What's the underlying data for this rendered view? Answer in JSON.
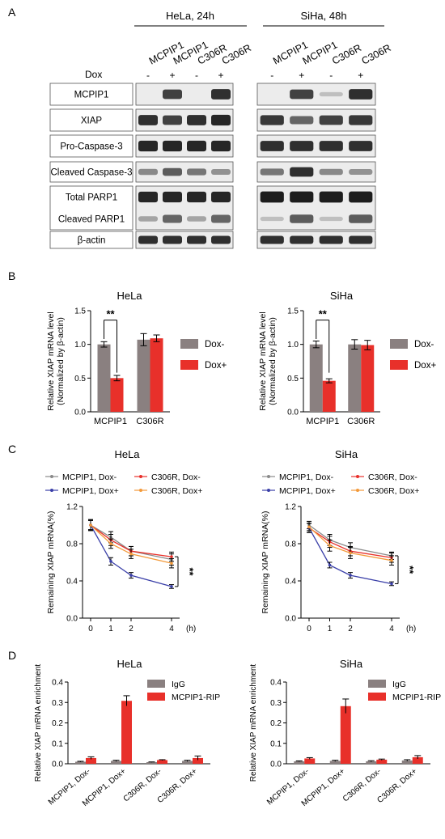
{
  "panel_letters": [
    "A",
    "B",
    "C",
    "D"
  ],
  "panel_a": {
    "groups": [
      {
        "label": "HeLa, 24h",
        "lanes": [
          "MCPIP1",
          "MCPIP1",
          "C306R",
          "C306R"
        ]
      },
      {
        "label": "SiHa, 48h",
        "lanes": [
          "MCPIP1",
          "MCPIP1",
          "C306R",
          "C306R"
        ]
      }
    ],
    "dox_label": "Dox",
    "dox_signs": [
      "-",
      "+",
      "-",
      "+"
    ],
    "rows": [
      {
        "label": "MCPIP1",
        "hela": [
          0.0,
          0.75,
          0.0,
          0.85
        ],
        "siha": [
          0.0,
          0.75,
          0.05,
          0.85
        ]
      },
      {
        "label": "XIAP",
        "hela": [
          0.85,
          0.75,
          0.85,
          0.9
        ],
        "siha": [
          0.8,
          0.55,
          0.75,
          0.8
        ]
      },
      {
        "label": "Pro-Caspase-3",
        "hela": [
          0.9,
          0.9,
          0.9,
          0.9
        ],
        "siha": [
          0.85,
          0.85,
          0.85,
          0.85
        ]
      },
      {
        "label": "Cleaved Caspase-3",
        "hela": [
          0.35,
          0.6,
          0.45,
          0.3
        ],
        "siha": [
          0.45,
          0.85,
          0.35,
          0.3
        ]
      },
      {
        "label": "Total PARP1",
        "hela": [
          0.9,
          0.9,
          0.9,
          0.9
        ],
        "siha": [
          0.95,
          0.95,
          0.95,
          0.95
        ]
      },
      {
        "label": "Cleaved PARP1",
        "hela": [
          0.2,
          0.55,
          0.2,
          0.55
        ],
        "siha": [
          0.05,
          0.6,
          0.05,
          0.6
        ]
      },
      {
        "label": "β-actin",
        "hela": [
          0.85,
          0.85,
          0.85,
          0.85
        ],
        "siha": [
          0.85,
          0.85,
          0.85,
          0.85
        ]
      }
    ]
  },
  "chart_data": [
    {
      "id": "B-HeLa",
      "type": "bar",
      "title": "HeLa",
      "ylabel": [
        "Relative XIAP mRNA level",
        "(Normalized by β-actin)"
      ],
      "categories": [
        "MCPIP1",
        "C306R"
      ],
      "ylim": [
        0,
        1.5
      ],
      "yticks": [
        "0.0",
        "0.5",
        "1.0",
        "1.5"
      ],
      "ytick_values": [
        0,
        0.5,
        1.0,
        1.5
      ],
      "series": [
        {
          "name": "Dox-",
          "color": "#8a8080",
          "values": [
            1.0,
            1.07
          ],
          "errors": [
            0.04,
            0.09
          ]
        },
        {
          "name": "Dox+",
          "color": "#e8302a",
          "values": [
            0.5,
            1.09
          ],
          "errors": [
            0.04,
            0.05
          ]
        }
      ],
      "significance": "**"
    },
    {
      "id": "B-SiHa",
      "type": "bar",
      "title": "SiHa",
      "ylabel": [
        "Relative XIAP mRNA level",
        "(Normalized by β-actin)"
      ],
      "categories": [
        "MCPIP1",
        "C306R"
      ],
      "ylim": [
        0,
        1.5
      ],
      "yticks": [
        "0.0",
        "0.5",
        "1.0",
        "1.5"
      ],
      "ytick_values": [
        0,
        0.5,
        1.0,
        1.5
      ],
      "series": [
        {
          "name": "Dox-",
          "color": "#8a8080",
          "values": [
            1.0,
            1.0
          ],
          "errors": [
            0.05,
            0.07
          ]
        },
        {
          "name": "Dox+",
          "color": "#e8302a",
          "values": [
            0.46,
            0.99
          ],
          "errors": [
            0.03,
            0.07
          ]
        }
      ],
      "significance": "**"
    },
    {
      "id": "C-HeLa",
      "type": "line",
      "title": "HeLa",
      "ylabel": "Remaining XIAP mRNA(%)",
      "x": [
        0,
        1,
        2,
        4
      ],
      "xticks": [
        "0",
        "1",
        "2",
        "4"
      ],
      "xunit": "(h)",
      "ylim": [
        0,
        1.2
      ],
      "yticks": [
        "0.0",
        "0.4",
        "0.8",
        "1.2"
      ],
      "ytick_values": [
        0,
        0.4,
        0.8,
        1.2
      ],
      "series": [
        {
          "name": "MCPIP1, Dox-",
          "color": "#8a8a8a",
          "values": [
            1.0,
            0.87,
            0.72,
            0.63
          ],
          "errors": [
            0.05,
            0.06,
            0.05,
            0.06
          ]
        },
        {
          "name": "C306R, Dox-",
          "color": "#e8302a",
          "values": [
            1.0,
            0.84,
            0.72,
            0.66
          ],
          "errors": [
            0.05,
            0.06,
            0.05,
            0.05
          ]
        },
        {
          "name": "MCPIP1, Dox+",
          "color": "#3a3fa8",
          "values": [
            1.0,
            0.61,
            0.46,
            0.34
          ],
          "errors": [
            0.06,
            0.04,
            0.03,
            0.02
          ]
        },
        {
          "name": "C306R, Dox+",
          "color": "#f39a3a",
          "values": [
            1.0,
            0.8,
            0.69,
            0.59
          ],
          "errors": [
            0.05,
            0.05,
            0.05,
            0.05
          ]
        }
      ],
      "significance": "**"
    },
    {
      "id": "C-SiHa",
      "type": "line",
      "title": "SiHa",
      "ylabel": "Remaining XIAP mRNA(%)",
      "x": [
        0,
        1,
        2,
        4
      ],
      "xticks": [
        "0",
        "1",
        "2",
        "4"
      ],
      "xunit": "(h)",
      "ylim": [
        0,
        1.2
      ],
      "yticks": [
        "0.0",
        "0.4",
        "0.8",
        "1.2"
      ],
      "ytick_values": [
        0,
        0.4,
        0.8,
        1.2
      ],
      "series": [
        {
          "name": "MCPIP1, Dox-",
          "color": "#8a8a8a",
          "values": [
            1.0,
            0.84,
            0.76,
            0.67
          ],
          "errors": [
            0.04,
            0.06,
            0.05,
            0.04
          ]
        },
        {
          "name": "C306R, Dox-",
          "color": "#e8302a",
          "values": [
            0.97,
            0.82,
            0.72,
            0.65
          ],
          "errors": [
            0.05,
            0.06,
            0.05,
            0.05
          ]
        },
        {
          "name": "MCPIP1, Dox+",
          "color": "#3a3fa8",
          "values": [
            0.97,
            0.57,
            0.46,
            0.37
          ],
          "errors": [
            0.05,
            0.03,
            0.03,
            0.02
          ]
        },
        {
          "name": "C306R, Dox+",
          "color": "#f39a3a",
          "values": [
            0.98,
            0.78,
            0.7,
            0.62
          ],
          "errors": [
            0.04,
            0.06,
            0.06,
            0.05
          ]
        }
      ],
      "significance": "**"
    },
    {
      "id": "D-HeLa",
      "type": "bar",
      "title": "HeLa",
      "ylabel": "Relative XIAP mRNA enrichment",
      "categories": [
        "MCPIP1, Dox-",
        "MCPIP1, Dox+",
        "C306R, Dox-",
        "C306R, Dox+"
      ],
      "ylim": [
        0,
        0.4
      ],
      "yticks": [
        "0.0",
        "0.1",
        "0.2",
        "0.3",
        "0.4"
      ],
      "ytick_values": [
        0,
        0.1,
        0.2,
        0.3,
        0.4
      ],
      "series": [
        {
          "name": "IgG",
          "color": "#8a8080",
          "values": [
            0.01,
            0.014,
            0.008,
            0.014
          ],
          "errors": [
            0.002,
            0.003,
            0.001,
            0.003
          ]
        },
        {
          "name": "MCPIP1-RIP",
          "color": "#e8302a",
          "values": [
            0.028,
            0.308,
            0.018,
            0.028
          ],
          "errors": [
            0.006,
            0.025,
            0.002,
            0.01
          ]
        }
      ]
    },
    {
      "id": "D-SiHa",
      "type": "bar",
      "title": "SiHa",
      "ylabel": "Relative XIAP mRNA enrichment",
      "categories": [
        "MCPIP1, Dox-",
        "MCPIP1, Dox+",
        "C306R, Dox-",
        "C306R, Dox+"
      ],
      "ylim": [
        0,
        0.4
      ],
      "yticks": [
        "0.0",
        "0.1",
        "0.2",
        "0.3",
        "0.4"
      ],
      "ytick_values": [
        0,
        0.1,
        0.2,
        0.3,
        0.4
      ],
      "series": [
        {
          "name": "IgG",
          "color": "#8a8080",
          "values": [
            0.012,
            0.014,
            0.012,
            0.016
          ],
          "errors": [
            0.002,
            0.003,
            0.003,
            0.004
          ]
        },
        {
          "name": "MCPIP1-RIP",
          "color": "#e8302a",
          "values": [
            0.026,
            0.282,
            0.02,
            0.032
          ],
          "errors": [
            0.004,
            0.035,
            0.003,
            0.008
          ]
        }
      ]
    }
  ]
}
